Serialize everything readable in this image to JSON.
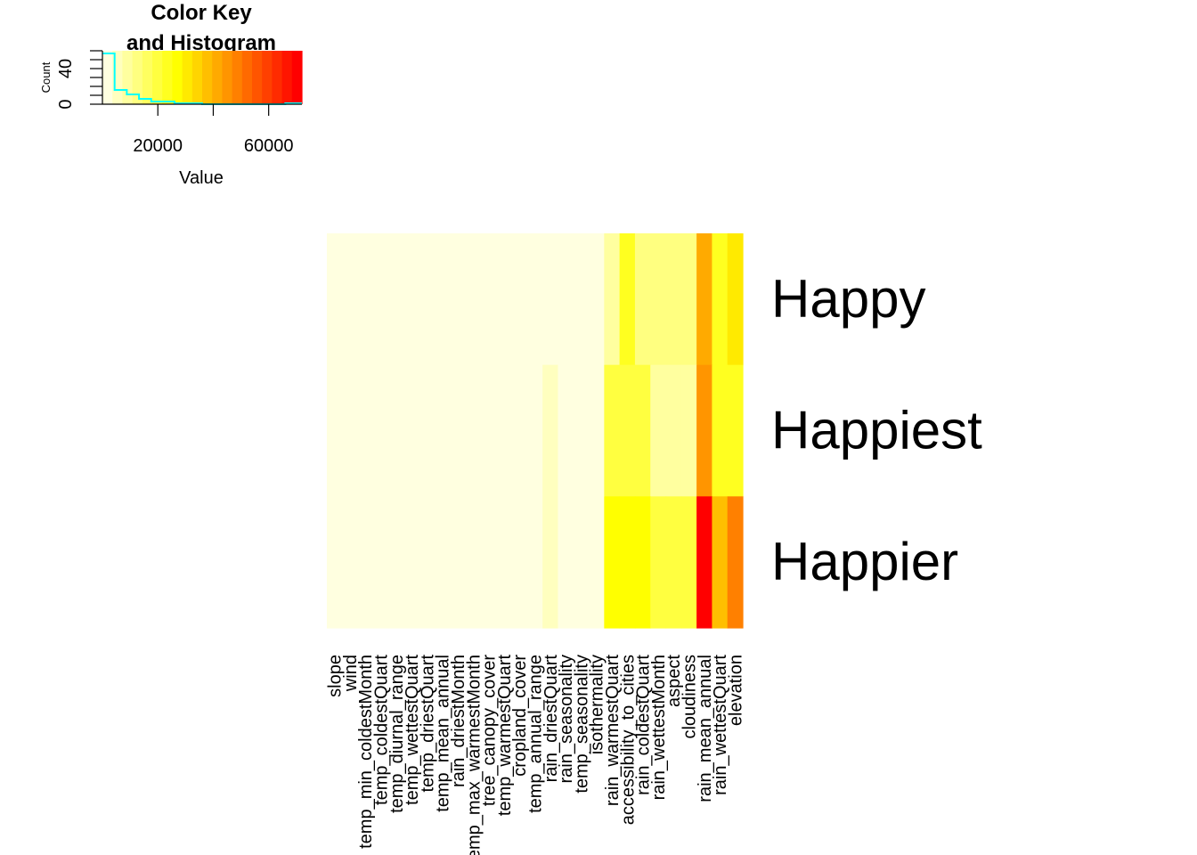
{
  "chart_data": [
    {
      "type": "histogram",
      "title": "Color Key\nand Histogram",
      "xlabel": "Value",
      "ylabel": "Count",
      "xlim": [
        0,
        72000
      ],
      "ylim": [
        0,
        60
      ],
      "x_ticks": [
        20000,
        40000,
        60000
      ],
      "x_tick_labels": [
        "20000",
        "",
        "60000"
      ],
      "y_ticks": [
        0,
        40
      ],
      "y_tick_labels": [
        "0",
        "40"
      ],
      "colors": [
        "#FFFFE0",
        "#FFFFBF",
        "#FFFF9F",
        "#FFFF80",
        "#FFFF60",
        "#FFFF40",
        "#FFFF20",
        "#FFFF00",
        "#FFEA00",
        "#FFD500",
        "#FFBF00",
        "#FFAA00",
        "#FF9500",
        "#FF8000",
        "#FF6A00",
        "#FF5500",
        "#FF4000",
        "#FF2B00",
        "#FF1500",
        "#FF0000"
      ],
      "histogram_color": "#00FFFF",
      "histogram_steps": [
        [
          0,
          57
        ],
        [
          4400,
          57
        ],
        [
          4400,
          16
        ],
        [
          8800,
          16
        ],
        [
          8800,
          11
        ],
        [
          13200,
          11
        ],
        [
          13200,
          6
        ],
        [
          17600,
          6
        ],
        [
          17600,
          3
        ],
        [
          26000,
          3
        ],
        [
          26000,
          1
        ],
        [
          36000,
          1
        ],
        [
          36000,
          0
        ],
        [
          52000,
          0
        ],
        [
          66000,
          0
        ],
        [
          66000,
          1
        ],
        [
          72000,
          1
        ]
      ]
    },
    {
      "type": "heatmap",
      "rows": [
        "Happy",
        "Happiest",
        "Happier"
      ],
      "columns": [
        "slope",
        "wind",
        "temp_min_coldestMonth",
        "temp_coldestQuart",
        "temp_diurnal_range",
        "temp_wettestQuart",
        "temp_driestQuart",
        "temp_mean_annual",
        "rain_driestMonth",
        "temp_max_warmestMonth",
        "tree_canopy_cover",
        "temp_warmestQuart",
        "cropland_cover",
        "temp_annual_range",
        "rain_driestQuart",
        "rain_seasonality",
        "temp_seasonality",
        "isothermality",
        "rain_warmestQuart",
        "accessibility_to_cities",
        "rain_coldestQuart",
        "rain_wettestMonth",
        "aspect",
        "cloudiness",
        "rain_mean_annual",
        "rain_wettestQuart",
        "elevation"
      ],
      "color_levels": [
        [
          0,
          0,
          0,
          0,
          0,
          0,
          0,
          0,
          0,
          0,
          0,
          0,
          0,
          0,
          0,
          0,
          0,
          0,
          2,
          6,
          3,
          3,
          3,
          3,
          11,
          6,
          8
        ],
        [
          0,
          0,
          0,
          0,
          0,
          0,
          0,
          0,
          0,
          0,
          0,
          0,
          0,
          0,
          1,
          0,
          0,
          0,
          5,
          5,
          5,
          2,
          2,
          2,
          12,
          6,
          6
        ],
        [
          0,
          0,
          0,
          0,
          0,
          0,
          0,
          0,
          0,
          0,
          0,
          0,
          0,
          0,
          1,
          0,
          0,
          0,
          7,
          7,
          7,
          5,
          5,
          5,
          19,
          10,
          13
        ]
      ]
    }
  ]
}
